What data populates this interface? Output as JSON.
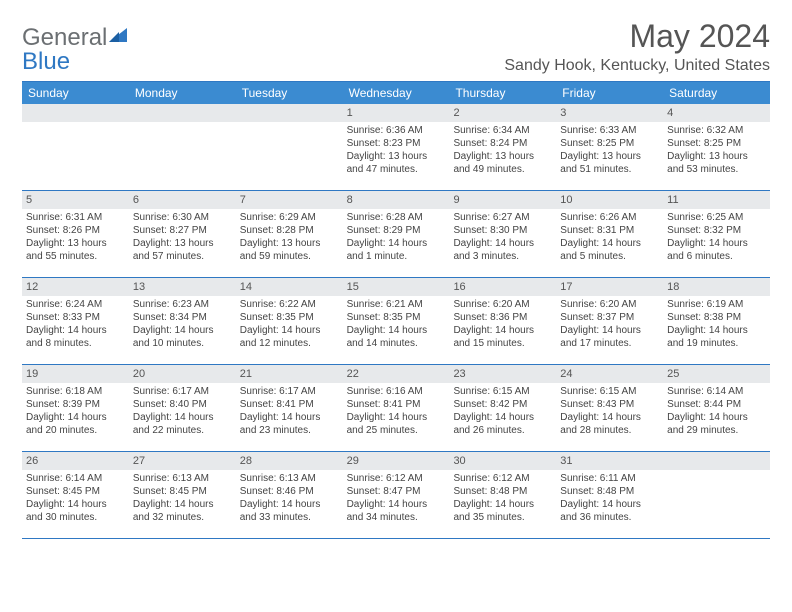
{
  "logo": {
    "text1": "General",
    "text2": "Blue"
  },
  "title": "May 2024",
  "location": "Sandy Hook, Kentucky, United States",
  "headers": [
    "Sunday",
    "Monday",
    "Tuesday",
    "Wednesday",
    "Thursday",
    "Friday",
    "Saturday"
  ],
  "colors": {
    "header_bg": "#3b8bd1",
    "border": "#2f78c3",
    "daynum_bg": "#e7e9eb"
  },
  "weeks": [
    [
      {
        "n": "",
        "sr": "",
        "ss": "",
        "dl": ""
      },
      {
        "n": "",
        "sr": "",
        "ss": "",
        "dl": ""
      },
      {
        "n": "",
        "sr": "",
        "ss": "",
        "dl": ""
      },
      {
        "n": "1",
        "sr": "Sunrise: 6:36 AM",
        "ss": "Sunset: 8:23 PM",
        "dl": "Daylight: 13 hours and 47 minutes."
      },
      {
        "n": "2",
        "sr": "Sunrise: 6:34 AM",
        "ss": "Sunset: 8:24 PM",
        "dl": "Daylight: 13 hours and 49 minutes."
      },
      {
        "n": "3",
        "sr": "Sunrise: 6:33 AM",
        "ss": "Sunset: 8:25 PM",
        "dl": "Daylight: 13 hours and 51 minutes."
      },
      {
        "n": "4",
        "sr": "Sunrise: 6:32 AM",
        "ss": "Sunset: 8:25 PM",
        "dl": "Daylight: 13 hours and 53 minutes."
      }
    ],
    [
      {
        "n": "5",
        "sr": "Sunrise: 6:31 AM",
        "ss": "Sunset: 8:26 PM",
        "dl": "Daylight: 13 hours and 55 minutes."
      },
      {
        "n": "6",
        "sr": "Sunrise: 6:30 AM",
        "ss": "Sunset: 8:27 PM",
        "dl": "Daylight: 13 hours and 57 minutes."
      },
      {
        "n": "7",
        "sr": "Sunrise: 6:29 AM",
        "ss": "Sunset: 8:28 PM",
        "dl": "Daylight: 13 hours and 59 minutes."
      },
      {
        "n": "8",
        "sr": "Sunrise: 6:28 AM",
        "ss": "Sunset: 8:29 PM",
        "dl": "Daylight: 14 hours and 1 minute."
      },
      {
        "n": "9",
        "sr": "Sunrise: 6:27 AM",
        "ss": "Sunset: 8:30 PM",
        "dl": "Daylight: 14 hours and 3 minutes."
      },
      {
        "n": "10",
        "sr": "Sunrise: 6:26 AM",
        "ss": "Sunset: 8:31 PM",
        "dl": "Daylight: 14 hours and 5 minutes."
      },
      {
        "n": "11",
        "sr": "Sunrise: 6:25 AM",
        "ss": "Sunset: 8:32 PM",
        "dl": "Daylight: 14 hours and 6 minutes."
      }
    ],
    [
      {
        "n": "12",
        "sr": "Sunrise: 6:24 AM",
        "ss": "Sunset: 8:33 PM",
        "dl": "Daylight: 14 hours and 8 minutes."
      },
      {
        "n": "13",
        "sr": "Sunrise: 6:23 AM",
        "ss": "Sunset: 8:34 PM",
        "dl": "Daylight: 14 hours and 10 minutes."
      },
      {
        "n": "14",
        "sr": "Sunrise: 6:22 AM",
        "ss": "Sunset: 8:35 PM",
        "dl": "Daylight: 14 hours and 12 minutes."
      },
      {
        "n": "15",
        "sr": "Sunrise: 6:21 AM",
        "ss": "Sunset: 8:35 PM",
        "dl": "Daylight: 14 hours and 14 minutes."
      },
      {
        "n": "16",
        "sr": "Sunrise: 6:20 AM",
        "ss": "Sunset: 8:36 PM",
        "dl": "Daylight: 14 hours and 15 minutes."
      },
      {
        "n": "17",
        "sr": "Sunrise: 6:20 AM",
        "ss": "Sunset: 8:37 PM",
        "dl": "Daylight: 14 hours and 17 minutes."
      },
      {
        "n": "18",
        "sr": "Sunrise: 6:19 AM",
        "ss": "Sunset: 8:38 PM",
        "dl": "Daylight: 14 hours and 19 minutes."
      }
    ],
    [
      {
        "n": "19",
        "sr": "Sunrise: 6:18 AM",
        "ss": "Sunset: 8:39 PM",
        "dl": "Daylight: 14 hours and 20 minutes."
      },
      {
        "n": "20",
        "sr": "Sunrise: 6:17 AM",
        "ss": "Sunset: 8:40 PM",
        "dl": "Daylight: 14 hours and 22 minutes."
      },
      {
        "n": "21",
        "sr": "Sunrise: 6:17 AM",
        "ss": "Sunset: 8:41 PM",
        "dl": "Daylight: 14 hours and 23 minutes."
      },
      {
        "n": "22",
        "sr": "Sunrise: 6:16 AM",
        "ss": "Sunset: 8:41 PM",
        "dl": "Daylight: 14 hours and 25 minutes."
      },
      {
        "n": "23",
        "sr": "Sunrise: 6:15 AM",
        "ss": "Sunset: 8:42 PM",
        "dl": "Daylight: 14 hours and 26 minutes."
      },
      {
        "n": "24",
        "sr": "Sunrise: 6:15 AM",
        "ss": "Sunset: 8:43 PM",
        "dl": "Daylight: 14 hours and 28 minutes."
      },
      {
        "n": "25",
        "sr": "Sunrise: 6:14 AM",
        "ss": "Sunset: 8:44 PM",
        "dl": "Daylight: 14 hours and 29 minutes."
      }
    ],
    [
      {
        "n": "26",
        "sr": "Sunrise: 6:14 AM",
        "ss": "Sunset: 8:45 PM",
        "dl": "Daylight: 14 hours and 30 minutes."
      },
      {
        "n": "27",
        "sr": "Sunrise: 6:13 AM",
        "ss": "Sunset: 8:45 PM",
        "dl": "Daylight: 14 hours and 32 minutes."
      },
      {
        "n": "28",
        "sr": "Sunrise: 6:13 AM",
        "ss": "Sunset: 8:46 PM",
        "dl": "Daylight: 14 hours and 33 minutes."
      },
      {
        "n": "29",
        "sr": "Sunrise: 6:12 AM",
        "ss": "Sunset: 8:47 PM",
        "dl": "Daylight: 14 hours and 34 minutes."
      },
      {
        "n": "30",
        "sr": "Sunrise: 6:12 AM",
        "ss": "Sunset: 8:48 PM",
        "dl": "Daylight: 14 hours and 35 minutes."
      },
      {
        "n": "31",
        "sr": "Sunrise: 6:11 AM",
        "ss": "Sunset: 8:48 PM",
        "dl": "Daylight: 14 hours and 36 minutes."
      },
      {
        "n": "",
        "sr": "",
        "ss": "",
        "dl": ""
      }
    ]
  ]
}
